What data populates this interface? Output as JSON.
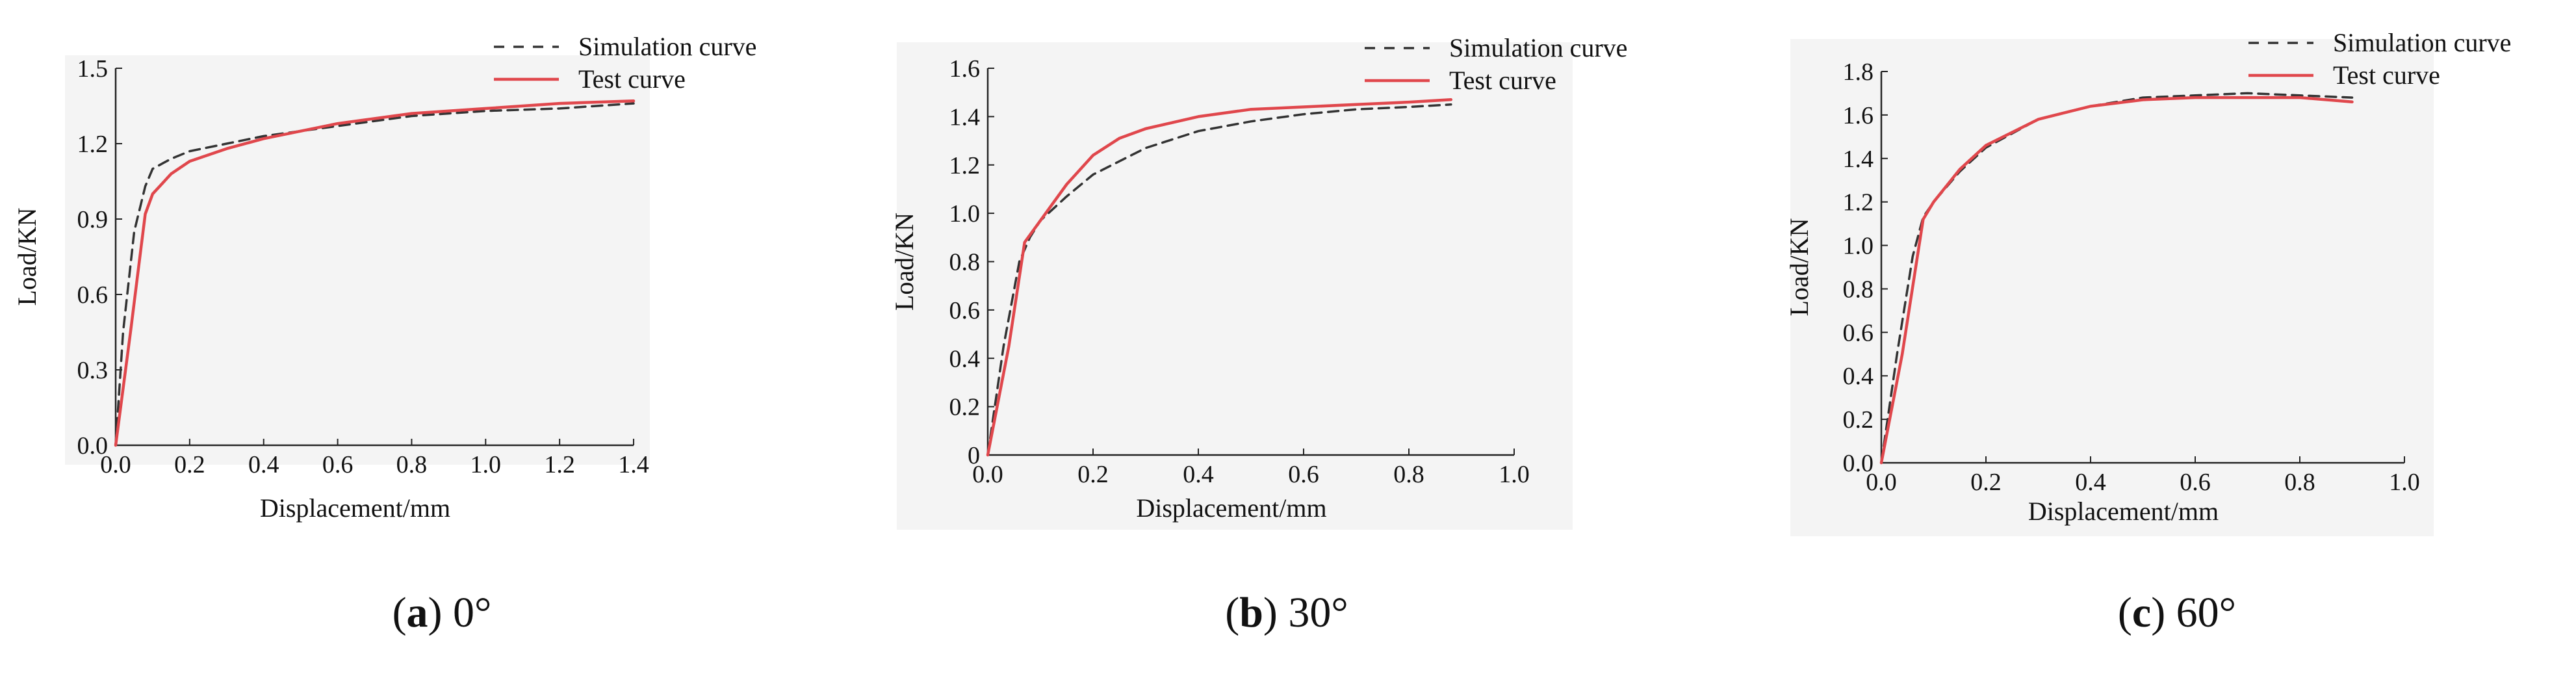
{
  "colors": {
    "simulation": "#333333",
    "test": "#e0474c",
    "panel_bg": "#f4f4f4",
    "axis": "#222222"
  },
  "chart_data": [
    {
      "type": "line",
      "id": "a",
      "title": "",
      "xlabel": "Displacement/mm",
      "ylabel": "Load/KN",
      "xlim": [
        0,
        1.4
      ],
      "ylim": [
        0,
        1.5
      ],
      "xticks": [
        0.0,
        0.2,
        0.4,
        0.6,
        0.8,
        1.0,
        1.2,
        1.4
      ],
      "xtick_labels": [
        "0.0",
        "0.2",
        "0.4",
        "0.6",
        "0.8",
        "1.0",
        "1.2",
        "1.4"
      ],
      "yticks": [
        0.0,
        0.3,
        0.6,
        0.9,
        1.2,
        1.5
      ],
      "ytick_labels": [
        "0.0",
        "0.3",
        "0.6",
        "0.9",
        "1.2",
        "1.5"
      ],
      "legend": [
        "Simulation curve",
        "Test curve"
      ],
      "legend_position": "top-right",
      "series": [
        {
          "name": "Simulation curve",
          "style": "dashed",
          "x": [
            0,
            0.02,
            0.05,
            0.08,
            0.1,
            0.15,
            0.2,
            0.3,
            0.4,
            0.6,
            0.8,
            1.0,
            1.2,
            1.4
          ],
          "y": [
            0,
            0.45,
            0.85,
            1.03,
            1.1,
            1.14,
            1.17,
            1.2,
            1.23,
            1.27,
            1.31,
            1.33,
            1.34,
            1.36
          ]
        },
        {
          "name": "Test curve",
          "style": "solid",
          "x": [
            0,
            0.04,
            0.08,
            0.1,
            0.15,
            0.2,
            0.3,
            0.4,
            0.6,
            0.8,
            1.0,
            1.2,
            1.4
          ],
          "y": [
            0,
            0.45,
            0.92,
            1.0,
            1.08,
            1.13,
            1.18,
            1.22,
            1.28,
            1.32,
            1.34,
            1.36,
            1.37
          ]
        }
      ],
      "caption_letter": "a",
      "caption_text": " 0°"
    },
    {
      "type": "line",
      "id": "b",
      "title": "",
      "xlabel": "Displacement/mm",
      "ylabel": "Load/KN",
      "xlim": [
        0,
        1.0
      ],
      "ylim": [
        0,
        1.6
      ],
      "xticks": [
        0.0,
        0.2,
        0.4,
        0.6,
        0.8,
        1.0
      ],
      "xtick_labels": [
        "0.0",
        "0.2",
        "0.4",
        "0.6",
        "0.8",
        "1.0"
      ],
      "yticks": [
        0,
        0.2,
        0.4,
        0.6,
        0.8,
        1.0,
        1.2,
        1.4,
        1.6
      ],
      "ytick_labels": [
        "0",
        "0.2",
        "0.4",
        "0.6",
        "0.8",
        "1.0",
        "1.2",
        "1.4",
        "1.6"
      ],
      "legend": [
        "Simulation curve",
        "Test curve"
      ],
      "legend_position": "top-right",
      "series": [
        {
          "name": "Simulation curve",
          "style": "dashed",
          "x": [
            0,
            0.03,
            0.06,
            0.08,
            0.1,
            0.15,
            0.2,
            0.3,
            0.4,
            0.5,
            0.6,
            0.7,
            0.8,
            0.88
          ],
          "y": [
            0,
            0.45,
            0.8,
            0.9,
            0.97,
            1.07,
            1.16,
            1.27,
            1.34,
            1.38,
            1.41,
            1.43,
            1.44,
            1.45
          ]
        },
        {
          "name": "Test curve",
          "style": "solid",
          "x": [
            0,
            0.04,
            0.07,
            0.1,
            0.15,
            0.2,
            0.25,
            0.3,
            0.4,
            0.5,
            0.6,
            0.7,
            0.8,
            0.88
          ],
          "y": [
            0,
            0.45,
            0.88,
            0.97,
            1.12,
            1.24,
            1.31,
            1.35,
            1.4,
            1.43,
            1.44,
            1.45,
            1.46,
            1.47
          ]
        }
      ],
      "caption_letter": "b",
      "caption_text": " 30°"
    },
    {
      "type": "line",
      "id": "c",
      "title": "",
      "xlabel": "Displacement/mm",
      "ylabel": "Load/KN",
      "xlim": [
        0,
        1.0
      ],
      "ylim": [
        0,
        1.8
      ],
      "xticks": [
        0.0,
        0.2,
        0.4,
        0.6,
        0.8,
        1.0
      ],
      "xtick_labels": [
        "0.0",
        "0.2",
        "0.4",
        "0.6",
        "0.8",
        "1.0"
      ],
      "yticks": [
        0.0,
        0.2,
        0.4,
        0.6,
        0.8,
        1.0,
        1.2,
        1.4,
        1.6,
        1.8
      ],
      "ytick_labels": [
        "0.0",
        "0.2",
        "0.4",
        "0.6",
        "0.8",
        "1.0",
        "1.2",
        "1.4",
        "1.6",
        "1.8"
      ],
      "legend": [
        "Simulation curve",
        "Test curve"
      ],
      "legend_position": "top-right",
      "series": [
        {
          "name": "Simulation curve",
          "style": "dashed",
          "x": [
            0,
            0.03,
            0.06,
            0.08,
            0.1,
            0.15,
            0.2,
            0.3,
            0.4,
            0.5,
            0.6,
            0.7,
            0.8,
            0.9
          ],
          "y": [
            0,
            0.5,
            0.95,
            1.13,
            1.2,
            1.34,
            1.45,
            1.58,
            1.64,
            1.68,
            1.69,
            1.7,
            1.69,
            1.68
          ]
        },
        {
          "name": "Test curve",
          "style": "solid",
          "x": [
            0,
            0.04,
            0.08,
            0.1,
            0.15,
            0.2,
            0.3,
            0.4,
            0.5,
            0.6,
            0.7,
            0.8,
            0.9
          ],
          "y": [
            0,
            0.5,
            1.12,
            1.2,
            1.35,
            1.46,
            1.58,
            1.64,
            1.67,
            1.68,
            1.68,
            1.68,
            1.66
          ]
        }
      ],
      "caption_letter": "c",
      "caption_text": " 60°"
    }
  ]
}
